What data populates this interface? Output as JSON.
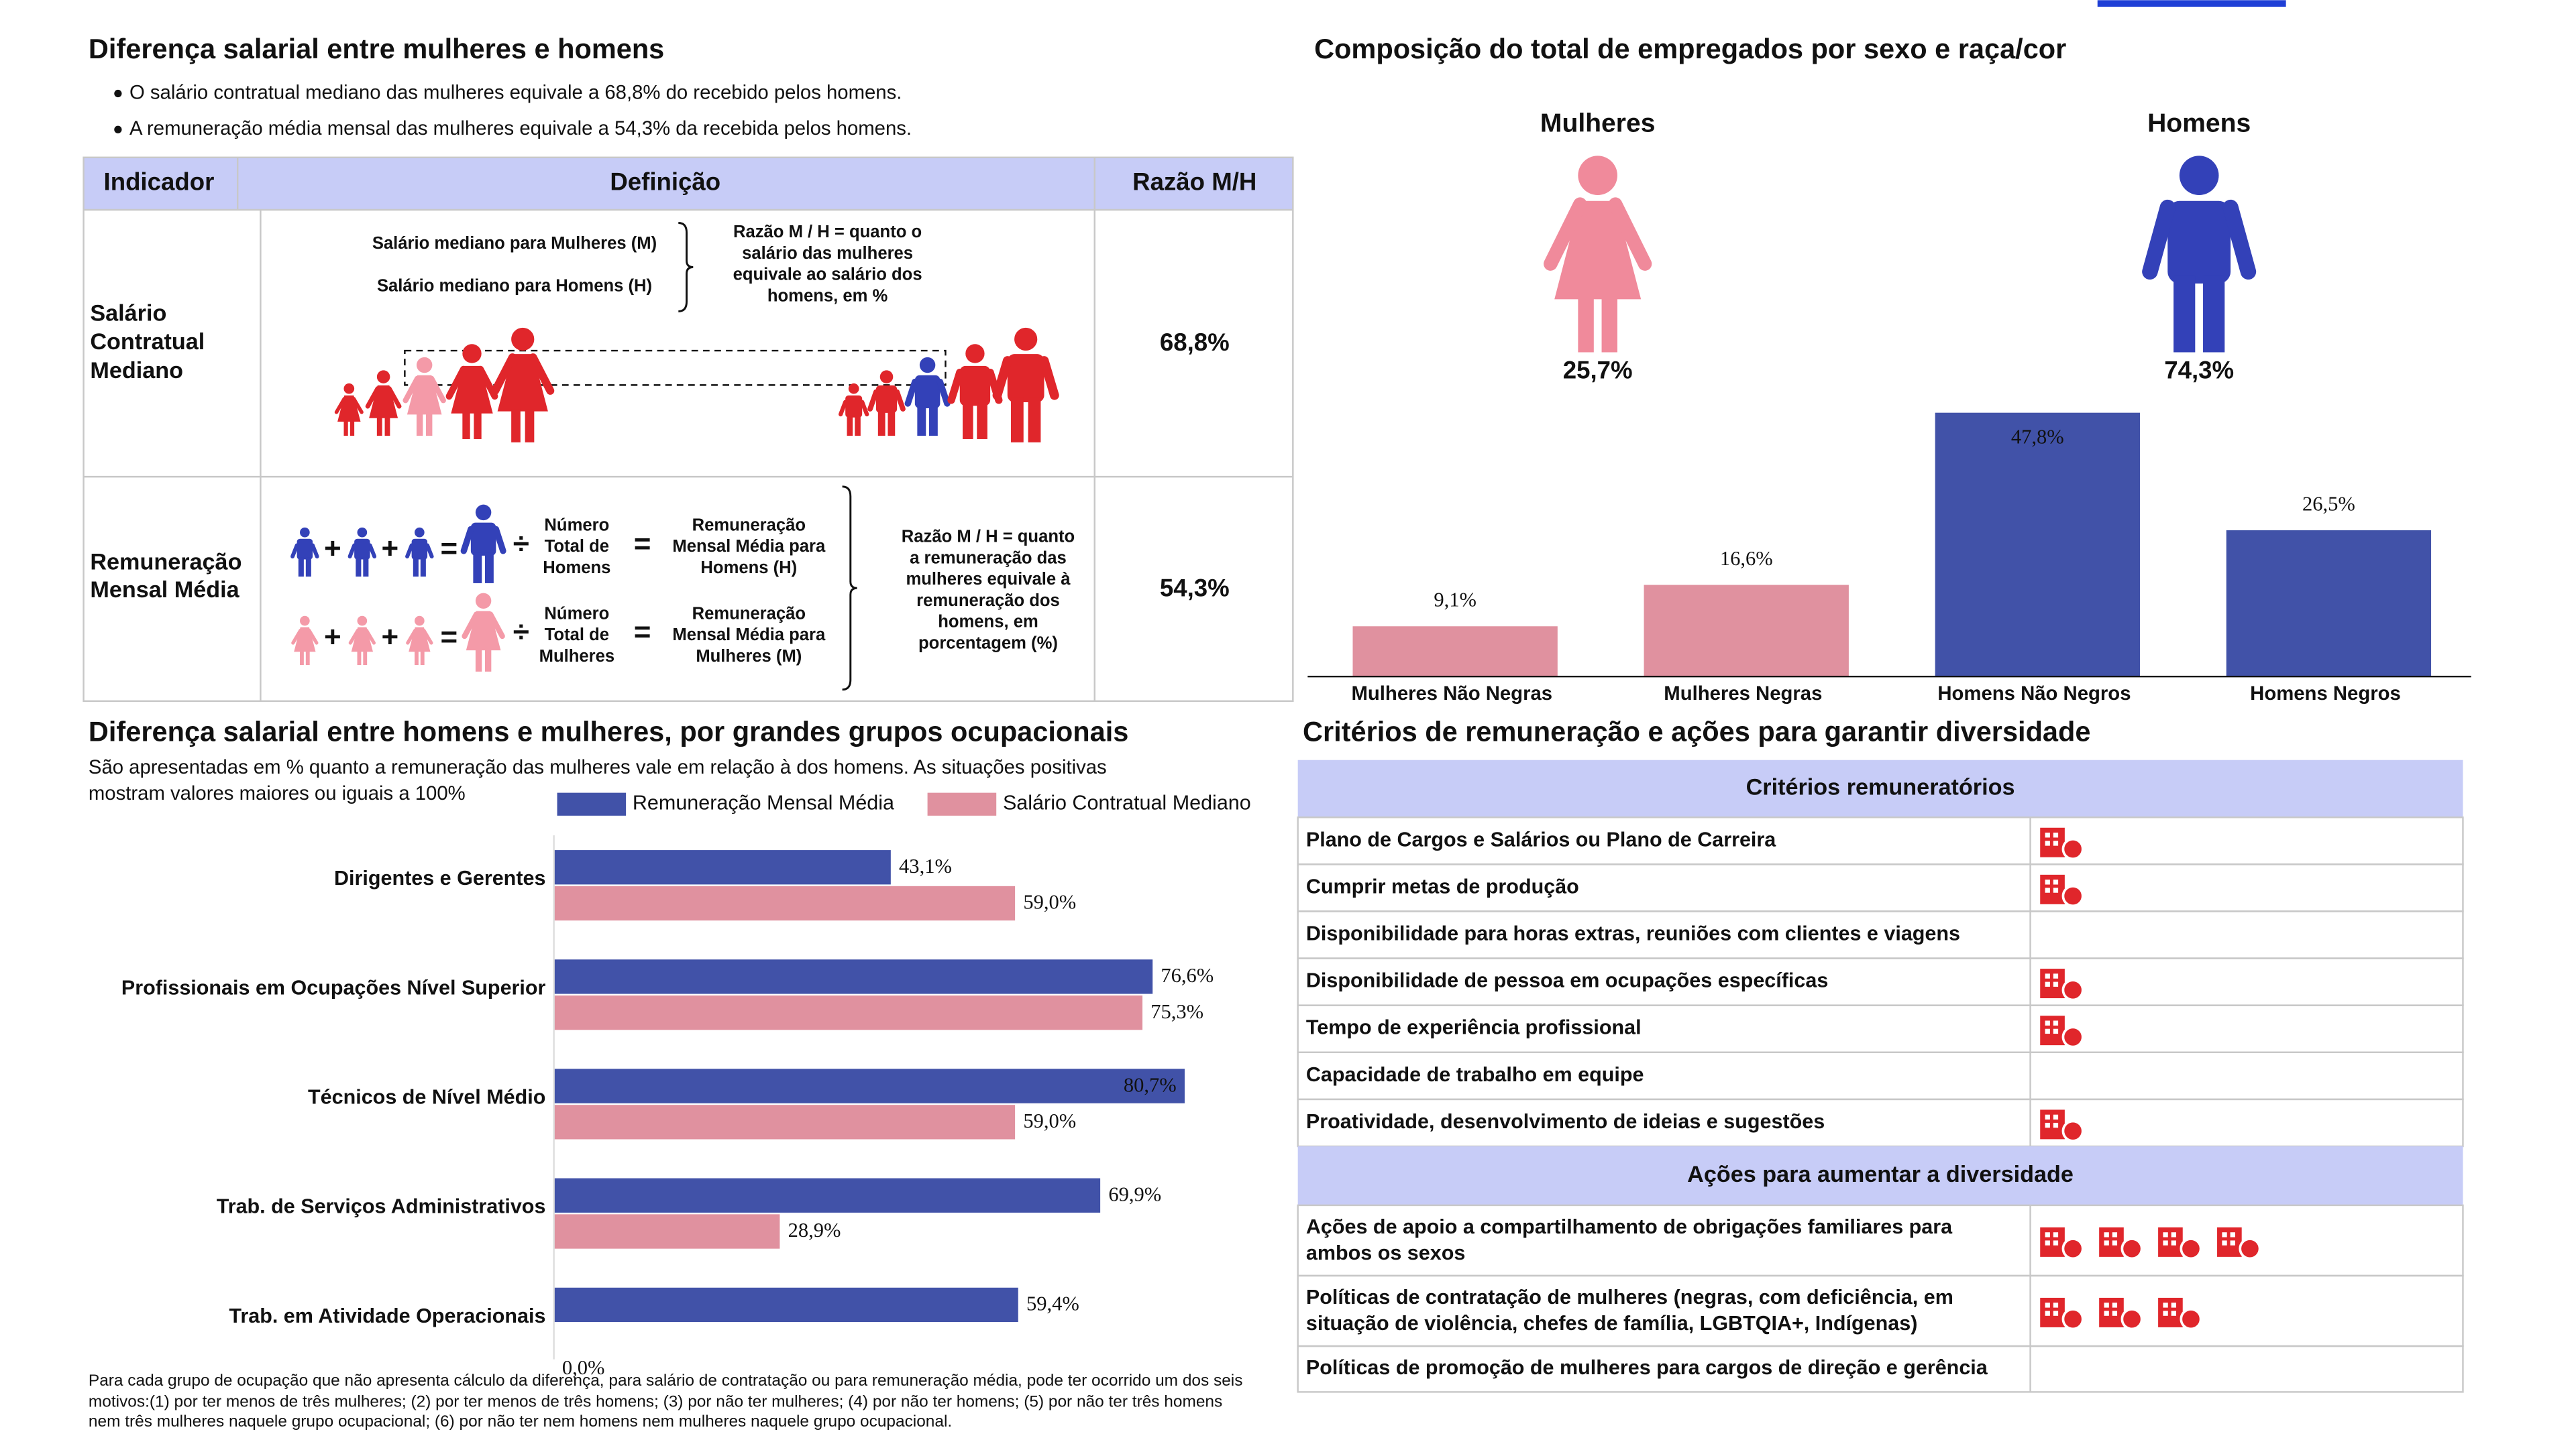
{
  "salary_gap": {
    "title": "Diferença salarial entre mulheres e homens",
    "bullets": [
      "O salário contratual mediano das mulheres equivale a 68,8% do recebido pelos homens.",
      "A remuneração média mensal das mulheres equivale a 54,3% da recebida pelos homens."
    ],
    "table": {
      "headers": [
        "Indicador",
        "Definição",
        "Razão M/H"
      ],
      "rows": [
        {
          "indicator": [
            "Salário",
            "Contratual",
            "Mediano"
          ],
          "ratio": "68,8%"
        },
        {
          "indicator": [
            "Remuneração",
            "Mensal Média"
          ],
          "ratio": "54,3%"
        }
      ]
    },
    "definitions": {
      "median_women": "Salário mediano para Mulheres (M)",
      "median_men": "Salário mediano para Homens (H)",
      "median_ratio": [
        "Razão M / H = quanto o",
        "salário das mulheres",
        "equivale ao salário dos",
        "homens, em %"
      ],
      "count_men": [
        "Número",
        "Total de",
        "Homens"
      ],
      "avg_men": [
        "Remuneração",
        "Mensal Média para",
        "Homens (H)"
      ],
      "count_women": [
        "Número",
        "Total de",
        "Mulheres"
      ],
      "avg_women": [
        "Remuneração",
        "Mensal Média para",
        "Mulheres (M)"
      ],
      "avg_ratio": [
        "Razão M / H = quanto",
        "a remuneração das",
        "mulheres equivale à",
        "remuneração dos",
        "homens, em",
        "porcentagem (%)"
      ]
    },
    "symbols": {
      "plus": "+",
      "equals": "=",
      "divide": "÷"
    }
  },
  "chart_data": [
    {
      "type": "bar",
      "title": "Composição do total de empregados por sexo e raça/cor",
      "groups": [
        {
          "name": "Mulheres",
          "value": 25.7,
          "value_label": "25,7%",
          "color": "#f08a9b"
        },
        {
          "name": "Homens",
          "value": 74.3,
          "value_label": "74,3%",
          "color": "#3341b8"
        }
      ],
      "categories": [
        "Mulheres Não Negras",
        "Mulheres Negras",
        "Homens Não Negros",
        "Homens Negros"
      ],
      "values": [
        9.1,
        16.6,
        47.8,
        26.5
      ],
      "value_labels": [
        "9,1%",
        "16,6%",
        "47,8%",
        "26,5%"
      ],
      "colors": [
        "#e0919f",
        "#e0919f",
        "#4152a8",
        "#4152a8"
      ]
    },
    {
      "type": "barh",
      "title": "Diferença salarial entre homens e mulheres, por grandes grupos ocupacionais",
      "subtitle": [
        "São apresentadas em % quanto a remuneração das mulheres vale em relação à dos homens. As situações positivas",
        "mostram valores maiores ou iguais a 100%"
      ],
      "legend": "top-right",
      "categories": [
        "Dirigentes e Gerentes",
        "Profissionais em Ocupações Nível Superior",
        "Técnicos de Nível Médio",
        "Trab. de Serviços Administrativos",
        "Trab. em Atividade Operacionais"
      ],
      "series": [
        {
          "name": "Remuneração Mensal Média",
          "color": "#4152a8",
          "values": [
            43.1,
            76.6,
            80.7,
            69.9,
            59.4
          ],
          "value_labels": [
            "43,1%",
            "76,6%",
            "80,7%",
            "69,9%",
            "59,4%"
          ]
        },
        {
          "name": "Salário Contratual Mediano",
          "color": "#e0919f",
          "values": [
            59.0,
            75.3,
            59.0,
            28.9,
            0.0
          ],
          "value_labels": [
            "59,0%",
            "75,3%",
            "59,0%",
            "28,9%",
            "0,0%"
          ]
        }
      ],
      "footnote": "Para cada grupo de ocupação que não apresenta cálculo da diferença, para salário de contratação ou para remuneração média, pode ter ocorrido um dos seis motivos:(1) por ter menos de três mulheres; (2) por ter menos de três homens; (3) por não ter mulheres; (4) por não ter homens; (5) por não ter três homens nem três mulheres naquele grupo ocupacional; (6) por não ter nem homens nem mulheres naquele grupo ocupacional."
    }
  ],
  "criteria": {
    "title": "Critérios de remuneração e ações para garantir diversidade",
    "sections": [
      {
        "title": "Critérios remuneratórios",
        "rows": [
          {
            "text": [
              "Plano de Cargos e Salários ou Plano de Carreira"
            ],
            "icons": 1
          },
          {
            "text": [
              "Cumprir metas de produção"
            ],
            "icons": 1
          },
          {
            "text": [
              "Disponibilidade para horas extras, reuniões com clientes e viagens"
            ],
            "icons": 0
          },
          {
            "text": [
              "Disponibilidade de pessoa em ocupações específicas"
            ],
            "icons": 1
          },
          {
            "text": [
              "Tempo de experiência profissional"
            ],
            "icons": 1
          },
          {
            "text": [
              "Capacidade de trabalho em equipe"
            ],
            "icons": 0
          },
          {
            "text": [
              "Proatividade, desenvolvimento de ideias e sugestões"
            ],
            "icons": 1
          }
        ]
      },
      {
        "title": "Ações para aumentar a diversidade",
        "rows": [
          {
            "text": [
              "Ações de apoio a compartilhamento de obrigações familiares para",
              "ambos os sexos"
            ],
            "icons": 4
          },
          {
            "text": [
              "Políticas de contratação de mulheres (negras, com deficiência, em",
              "situação de violência, chefes de família, LGBTQIA+, Indígenas)"
            ],
            "icons": 3
          },
          {
            "text": [
              "Políticas de promoção de mulheres para cargos de direção e gerência"
            ],
            "icons": 0
          }
        ]
      }
    ]
  }
}
